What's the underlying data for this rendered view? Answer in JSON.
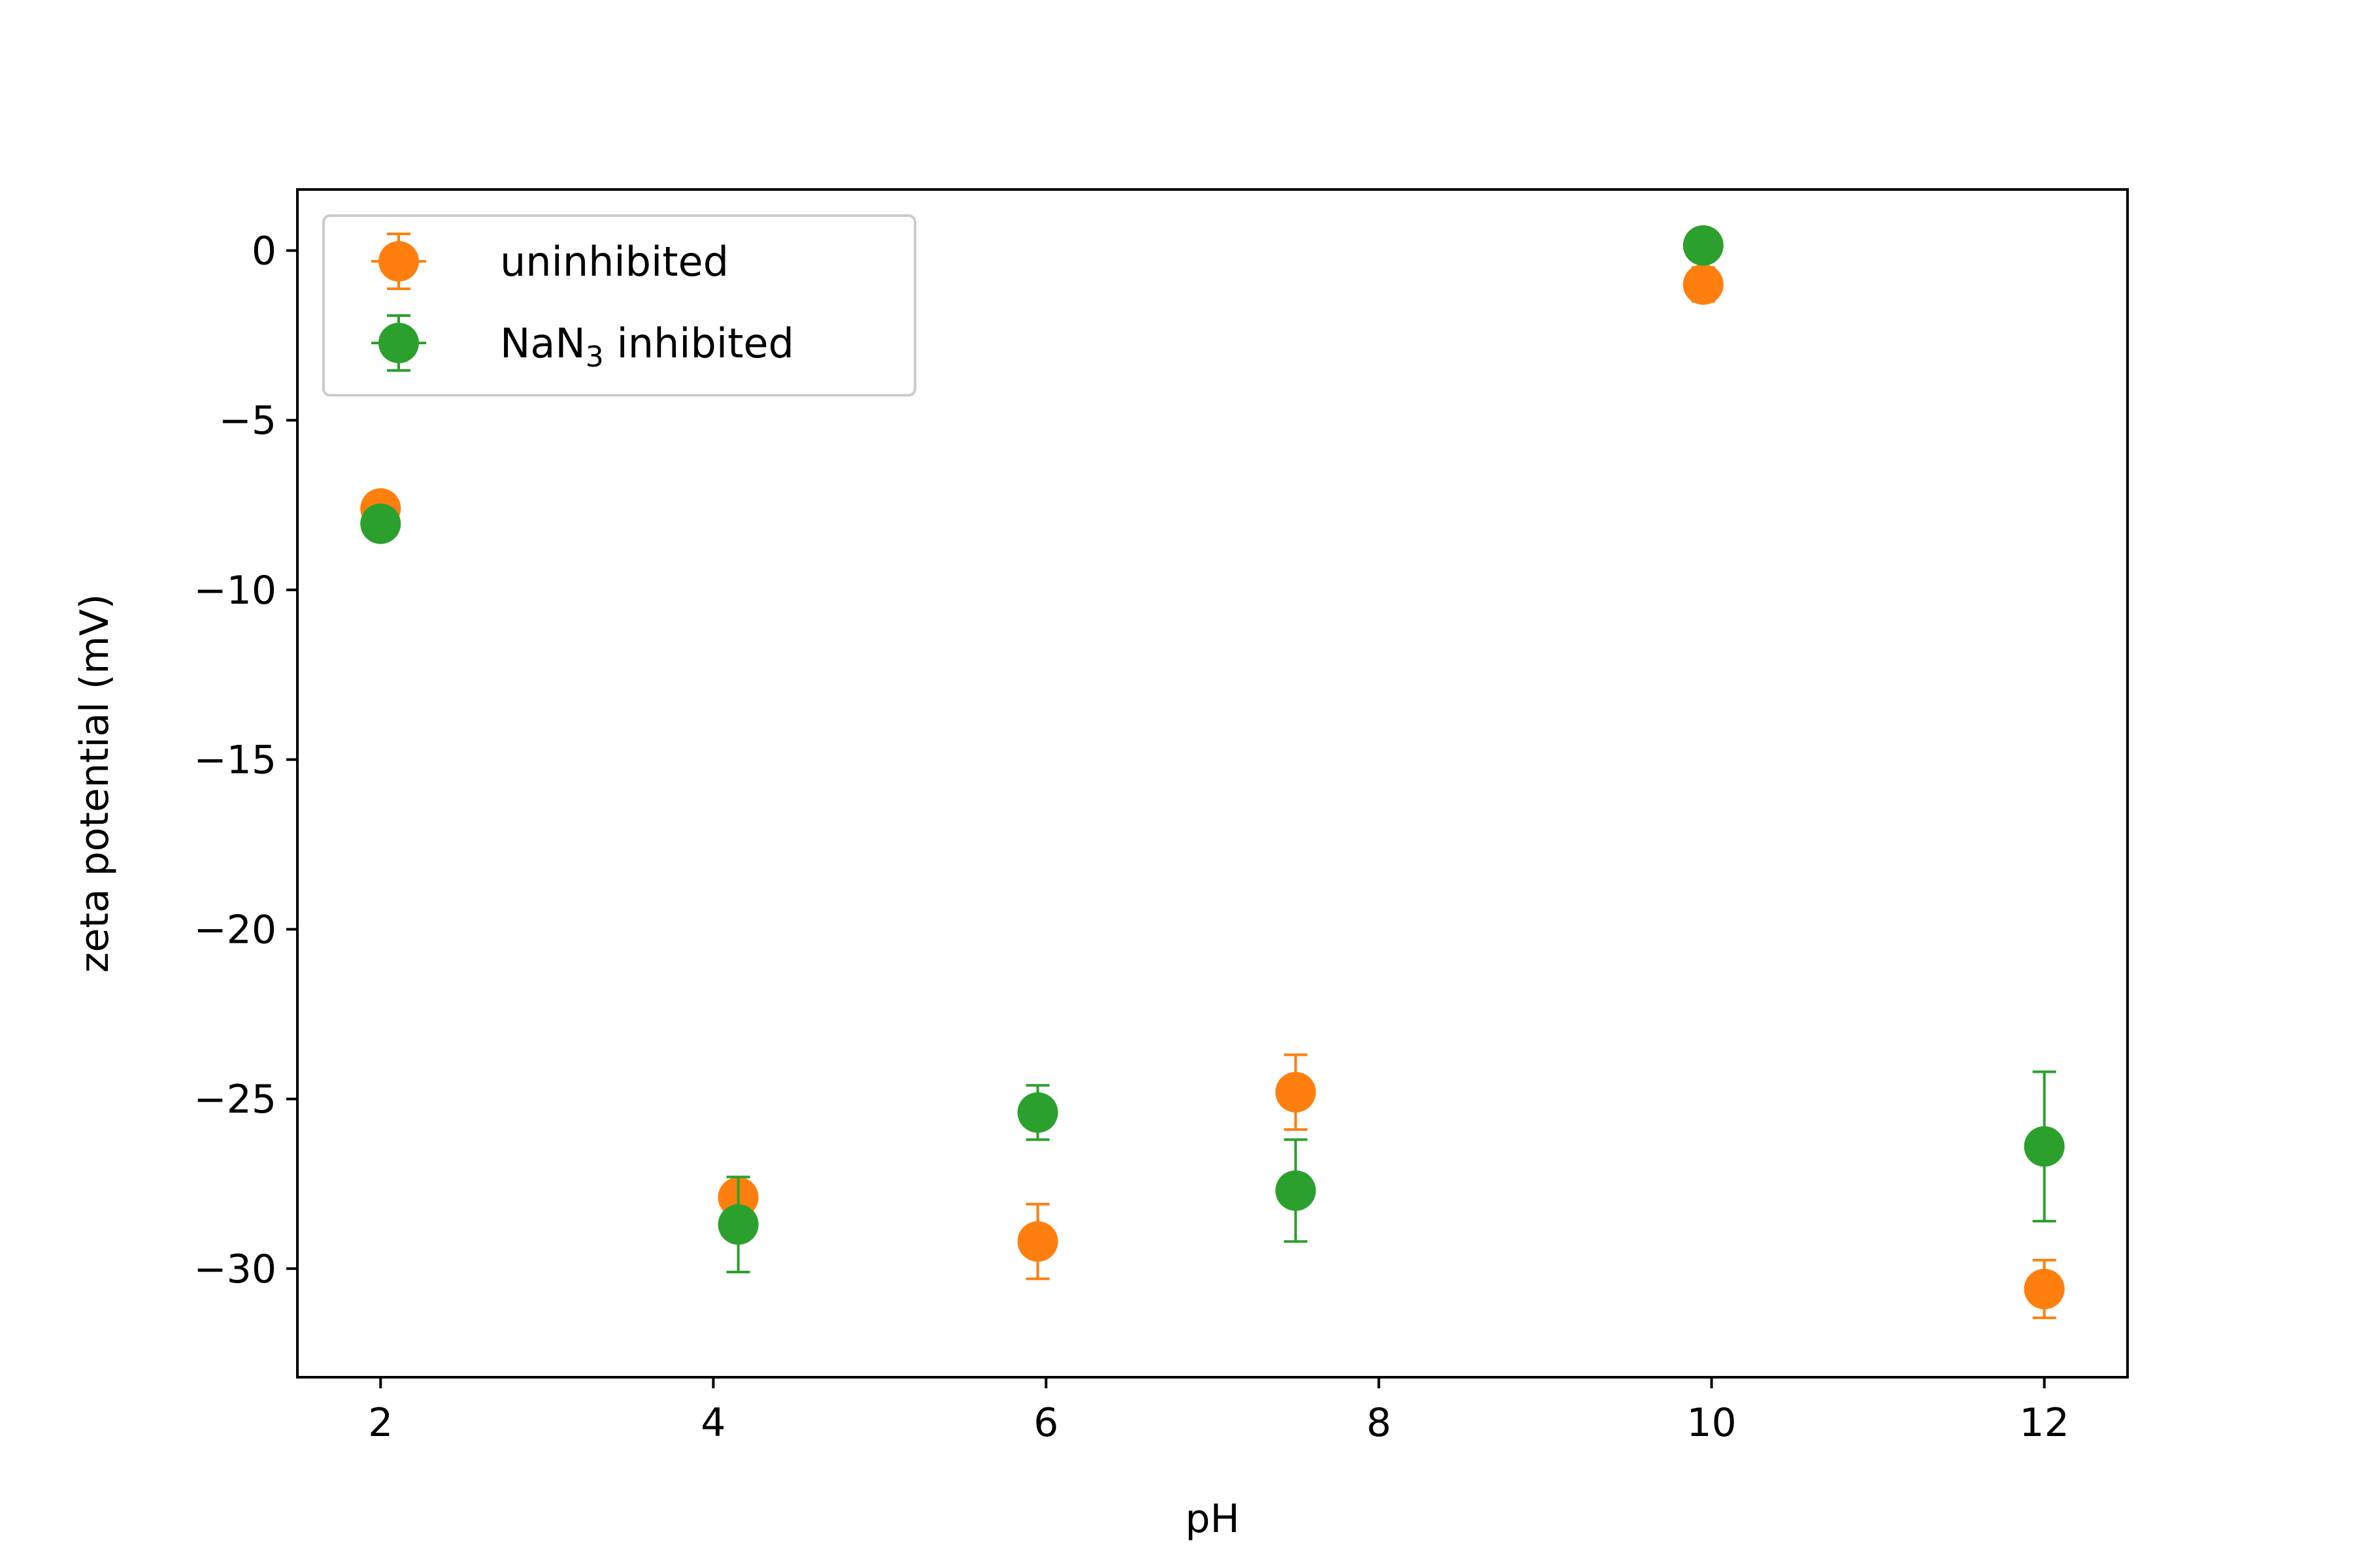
{
  "chart_data": {
    "type": "scatter",
    "title": "",
    "xlabel": "pH",
    "ylabel": "zeta potential (mV)",
    "xlim": [
      1.5,
      12.5
    ],
    "ylim": [
      -33.2,
      1.8
    ],
    "x_ticks": [
      2,
      4,
      6,
      8,
      10,
      12
    ],
    "y_ticks": [
      0,
      -5,
      -10,
      -15,
      -20,
      -25,
      -30
    ],
    "x_tick_labels": [
      "2",
      "4",
      "6",
      "8",
      "10",
      "12"
    ],
    "y_tick_labels": [
      "0",
      "−5",
      "−10",
      "−15",
      "−20",
      "−25",
      "−30"
    ],
    "grid": false,
    "legend_position": "top-left",
    "series": [
      {
        "name": "uninhibited",
        "color": "#ff7f0e",
        "x": [
          2.0,
          4.15,
          5.95,
          7.5,
          9.95,
          12.0
        ],
        "y": [
          -7.6,
          -27.9,
          -29.2,
          -24.8,
          -1.0,
          -30.6
        ],
        "yerr": [
          0.2,
          0.6,
          1.1,
          1.1,
          0.5,
          0.85
        ]
      },
      {
        "name": "NaN₃ inhibited",
        "legend_main": "NaN",
        "legend_sub": "3",
        "legend_rest": " inhibited",
        "color": "#2ca02c",
        "x": [
          2.0,
          4.15,
          5.95,
          7.5,
          9.95,
          12.0
        ],
        "y": [
          -8.05,
          -28.7,
          -25.4,
          -27.7,
          0.15,
          -26.4
        ],
        "yerr": [
          0.2,
          1.4,
          0.8,
          1.5,
          0.2,
          2.2
        ]
      }
    ]
  }
}
